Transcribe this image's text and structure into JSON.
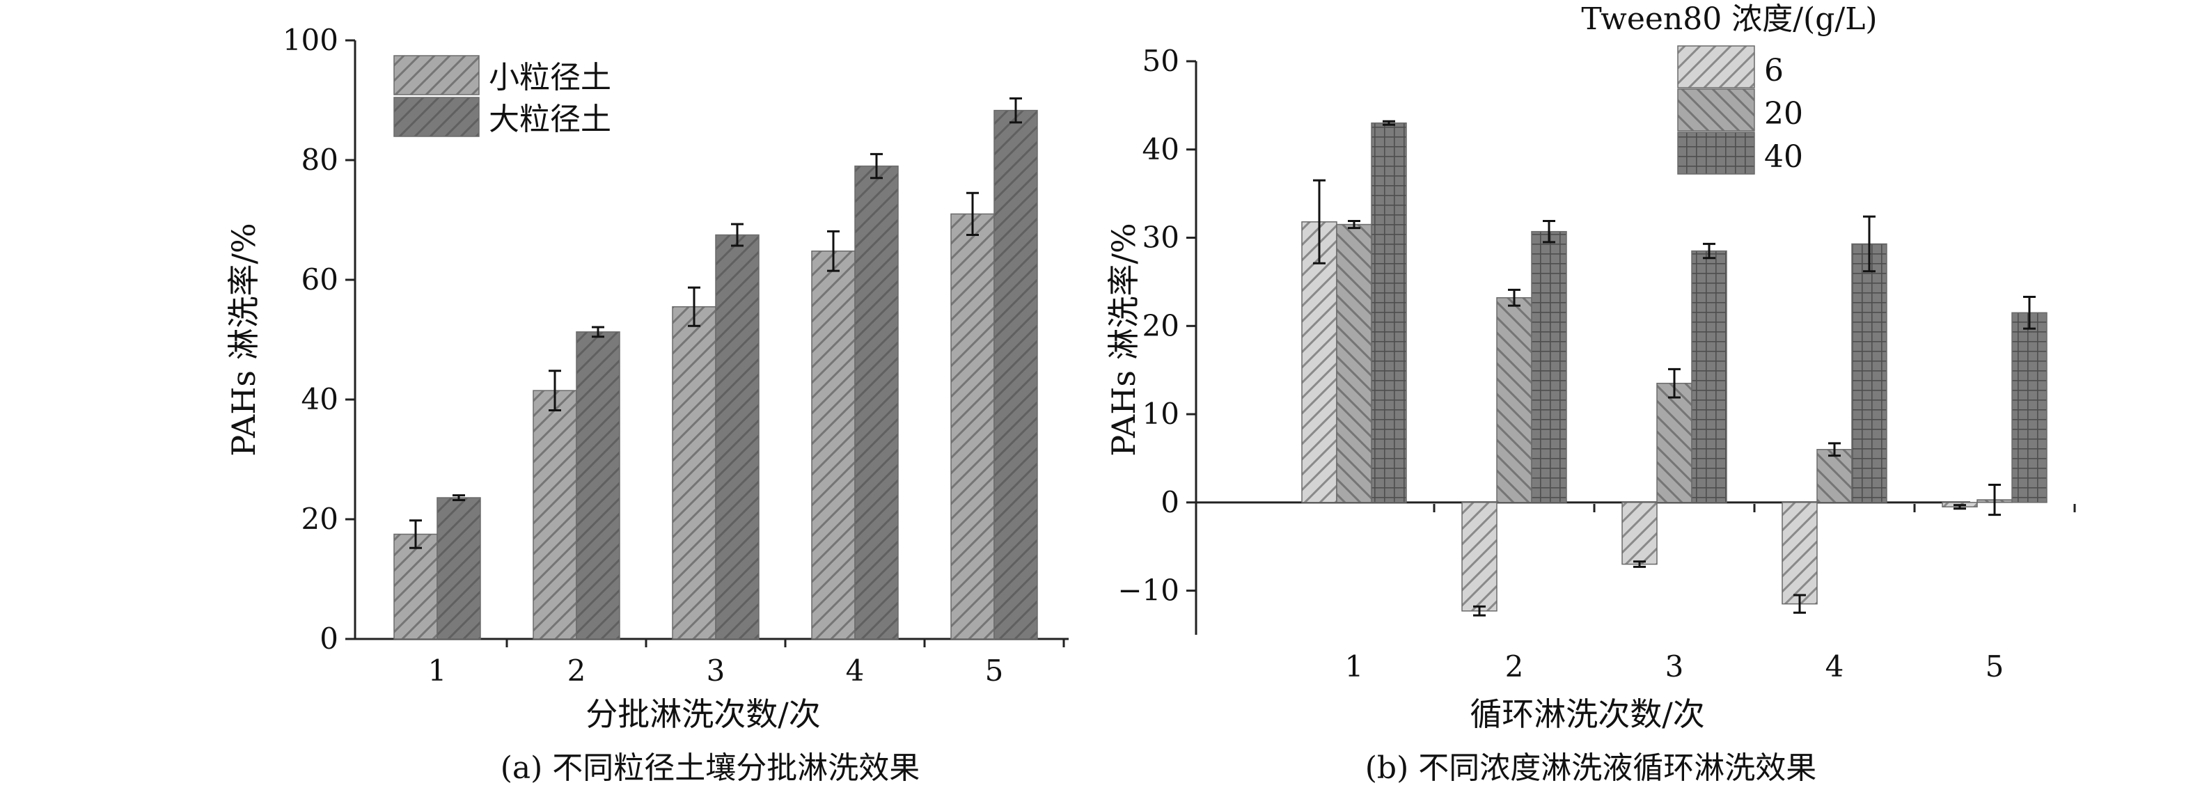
{
  "chart_data": [
    {
      "type": "bar",
      "caption": "(a) 不同粒径土壤分批淋洗效果",
      "xlabel": "分批淋洗次数/次",
      "ylabel": "PAHs 淋洗率/%",
      "categories": [
        "1",
        "2",
        "3",
        "4",
        "5"
      ],
      "ylim": [
        0,
        100
      ],
      "yticks": [
        0,
        20,
        40,
        60,
        80,
        100
      ],
      "legend_position": "top-left",
      "series": [
        {
          "name": "小粒径土",
          "values": [
            17.5,
            41.5,
            55.5,
            64.8,
            71.0
          ],
          "errors": [
            2.3,
            3.3,
            3.2,
            3.3,
            3.5
          ],
          "color": "#a9a9a9",
          "pattern": "diag-right"
        },
        {
          "name": "大粒径土",
          "values": [
            23.6,
            51.3,
            67.5,
            79.0,
            88.3
          ],
          "errors": [
            0.4,
            0.8,
            1.8,
            2.0,
            2.0
          ],
          "color": "#7a7a7a",
          "pattern": "diag-right"
        }
      ]
    },
    {
      "type": "bar",
      "caption": "(b) 不同浓度淋洗液循环淋洗效果",
      "xlabel": "循环淋洗次数/次",
      "ylabel": "PAHs 淋洗率/%",
      "categories": [
        "1",
        "2",
        "3",
        "4",
        "5"
      ],
      "ylim": [
        -15,
        50
      ],
      "yticks": [
        -10,
        0,
        10,
        20,
        30,
        40,
        50
      ],
      "legend_title": "Tween80 浓度/(g/L)",
      "legend_position": "top-center",
      "series": [
        {
          "name": "6",
          "values": [
            31.8,
            -12.3,
            -7.0,
            -11.5,
            -0.5
          ],
          "errors": [
            4.7,
            0.5,
            0.3,
            1.0,
            0.2
          ],
          "color": "#d4d4d4",
          "pattern": "diag-right"
        },
        {
          "name": "20",
          "values": [
            31.5,
            23.2,
            13.5,
            6.0,
            0.3
          ],
          "errors": [
            0.4,
            0.9,
            1.6,
            0.7,
            1.7
          ],
          "color": "#a8a8a8",
          "pattern": "diag-left"
        },
        {
          "name": "40",
          "values": [
            43.0,
            30.7,
            28.5,
            29.3,
            21.5
          ],
          "errors": [
            0.2,
            1.2,
            0.8,
            3.1,
            1.8
          ],
          "color": "#7c7c7c",
          "pattern": "grid"
        }
      ]
    }
  ]
}
